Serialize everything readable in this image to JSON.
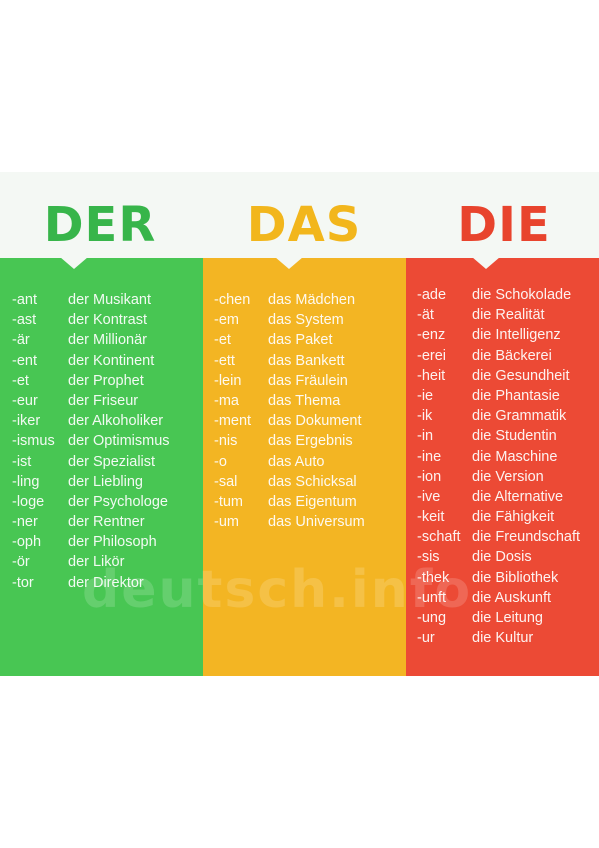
{
  "headings": {
    "der": {
      "text": "DER",
      "color": "#37b54a"
    },
    "das": {
      "text": "DAS",
      "color": "#f2b61c"
    },
    "die": {
      "text": "DIE",
      "color": "#e8442d"
    }
  },
  "columns": {
    "der": {
      "bg": "#48c653",
      "rows": [
        {
          "suffix": "-ant",
          "word": "der Musikant"
        },
        {
          "suffix": "-ast",
          "word": "der Kontrast"
        },
        {
          "suffix": "-är",
          "word": "der Millionär"
        },
        {
          "suffix": "-ent",
          "word": "der Kontinent"
        },
        {
          "suffix": "-et",
          "word": "der Prophet"
        },
        {
          "suffix": "-eur",
          "word": "der Friseur"
        },
        {
          "suffix": "-iker",
          "word": "der Alkoholiker"
        },
        {
          "suffix": "-ismus",
          "word": "der Optimismus"
        },
        {
          "suffix": "-ist",
          "word": "der Spezialist"
        },
        {
          "suffix": "-ling",
          "word": "der Liebling"
        },
        {
          "suffix": "-loge",
          "word": "der Psychologe"
        },
        {
          "suffix": "-ner",
          "word": "der Rentner"
        },
        {
          "suffix": "-oph",
          "word": "der Philosoph"
        },
        {
          "suffix": "-ör",
          "word": "der Likör"
        },
        {
          "suffix": "-tor",
          "word": "der Direktor"
        }
      ]
    },
    "das": {
      "bg": "#f3b523",
      "rows": [
        {
          "suffix": "-chen",
          "word": "das Mädchen"
        },
        {
          "suffix": "-em",
          "word": "das System"
        },
        {
          "suffix": "-et",
          "word": "das Paket"
        },
        {
          "suffix": "-ett",
          "word": "das Bankett"
        },
        {
          "suffix": "-lein",
          "word": "das Fräulein"
        },
        {
          "suffix": "-ma",
          "word": "das Thema"
        },
        {
          "suffix": "-ment",
          "word": "das Dokument"
        },
        {
          "suffix": "-nis",
          "word": "das Ergebnis"
        },
        {
          "suffix": "-o",
          "word": "das Auto"
        },
        {
          "suffix": "-sal",
          "word": "das Schicksal"
        },
        {
          "suffix": "-tum",
          "word": "das Eigentum"
        },
        {
          "suffix": "-um",
          "word": "das Universum"
        }
      ]
    },
    "die": {
      "bg": "#ec4a35",
      "rows": [
        {
          "suffix": "-ade",
          "word": "die Schokolade"
        },
        {
          "suffix": "-ät",
          "word": "die Realität"
        },
        {
          "suffix": "-enz",
          "word": "die Intelligenz"
        },
        {
          "suffix": "-erei",
          "word": "die Bäckerei"
        },
        {
          "suffix": "-heit",
          "word": "die Gesundheit"
        },
        {
          "suffix": "-ie",
          "word": "die Phantasie"
        },
        {
          "suffix": "-ik",
          "word": "die Grammatik"
        },
        {
          "suffix": "-in",
          "word": "die Studentin"
        },
        {
          "suffix": "-ine",
          "word": "die Maschine"
        },
        {
          "suffix": "-ion",
          "word": "die Version"
        },
        {
          "suffix": "-ive",
          "word": "die Alternative"
        },
        {
          "suffix": "-keit",
          "word": "die Fähigkeit"
        },
        {
          "suffix": "-schaft",
          "word": "die Freundschaft"
        },
        {
          "suffix": "-sis",
          "word": "die Dosis"
        },
        {
          "suffix": "-thek",
          "word": "die Bibliothek"
        },
        {
          "suffix": "-unft",
          "word": "die Auskunft"
        },
        {
          "suffix": "-ung",
          "word": "die Leitung"
        },
        {
          "suffix": "-ur",
          "word": "die Kultur"
        }
      ]
    }
  },
  "watermark": "deutsch.info"
}
